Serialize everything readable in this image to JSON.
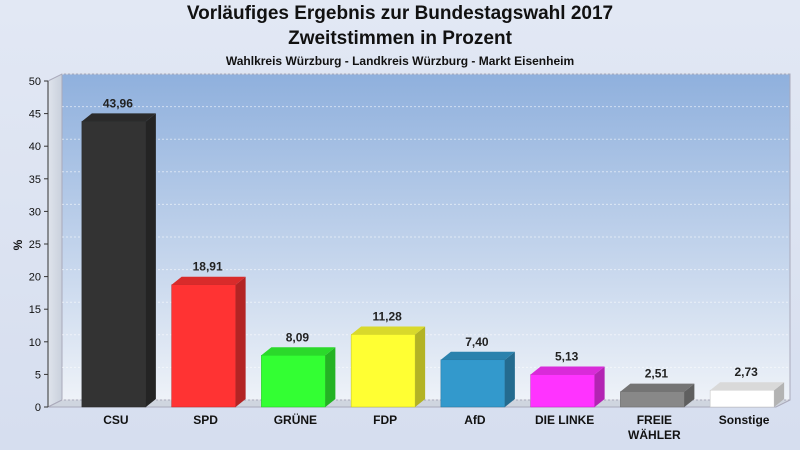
{
  "chart_data": {
    "type": "bar",
    "title": "Vorläufiges Ergebnis zur Bundestagswahl 2017",
    "subtitle": "Zweitstimmen in Prozent",
    "subtitle2": "Wahlkreis Würzburg - Landkreis Würzburg - Markt Eisenheim",
    "xlabel": "",
    "ylabel": "%",
    "ylim": [
      0,
      50
    ],
    "yticks": [
      0,
      5,
      10,
      15,
      20,
      25,
      30,
      35,
      40,
      45,
      50
    ],
    "grid": true,
    "categories": [
      "CSU",
      "SPD",
      "GRÜNE",
      "FDP",
      "AfD",
      "DIE LINKE",
      "FREIE WÄHLER",
      "Sonstige"
    ],
    "category_lines": [
      [
        "CSU"
      ],
      [
        "SPD"
      ],
      [
        "GRÜNE"
      ],
      [
        "FDP"
      ],
      [
        "AfD"
      ],
      [
        "DIE LINKE"
      ],
      [
        "FREIE",
        "WÄHLER"
      ],
      [
        "Sonstige"
      ]
    ],
    "values": [
      43.96,
      18.91,
      8.09,
      11.28,
      7.4,
      5.13,
      2.51,
      2.73
    ],
    "value_labels": [
      "43,96",
      "18,91",
      "8,09",
      "11,28",
      "7,40",
      "5,13",
      "2,51",
      "2,73"
    ],
    "colors": [
      "#333333",
      "#ff3333",
      "#33ff33",
      "#ffff33",
      "#3399cc",
      "#ff33ff",
      "#888888",
      "#ffffff"
    ]
  }
}
